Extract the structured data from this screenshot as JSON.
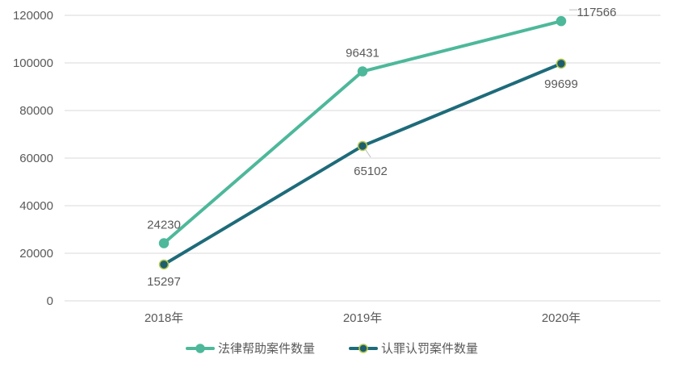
{
  "chart_data": {
    "type": "line",
    "title": "",
    "xlabel": "",
    "ylabel": "",
    "categories": [
      "2018年",
      "2019年",
      "2020年"
    ],
    "ylim": [
      0,
      120000
    ],
    "yticks": [
      0,
      20000,
      40000,
      60000,
      80000,
      100000,
      120000
    ],
    "grid": true,
    "legend_position": "bottom",
    "series": [
      {
        "name": "法律帮助案件数量",
        "values": [
          24230,
          96431,
          117566
        ],
        "color": "#4DB89A",
        "marker_fill": "#4DB89A",
        "marker_edge": "#4DB89A",
        "labels": [
          "24230",
          "96431",
          "117566"
        ]
      },
      {
        "name": "认罪认罚案件数量",
        "values": [
          15297,
          65102,
          99699
        ],
        "color": "#1E6B7A",
        "marker_fill": "#1E5E6E",
        "marker_edge": "#B5C94A",
        "labels": [
          "15297",
          "65102",
          "99699"
        ]
      }
    ]
  }
}
